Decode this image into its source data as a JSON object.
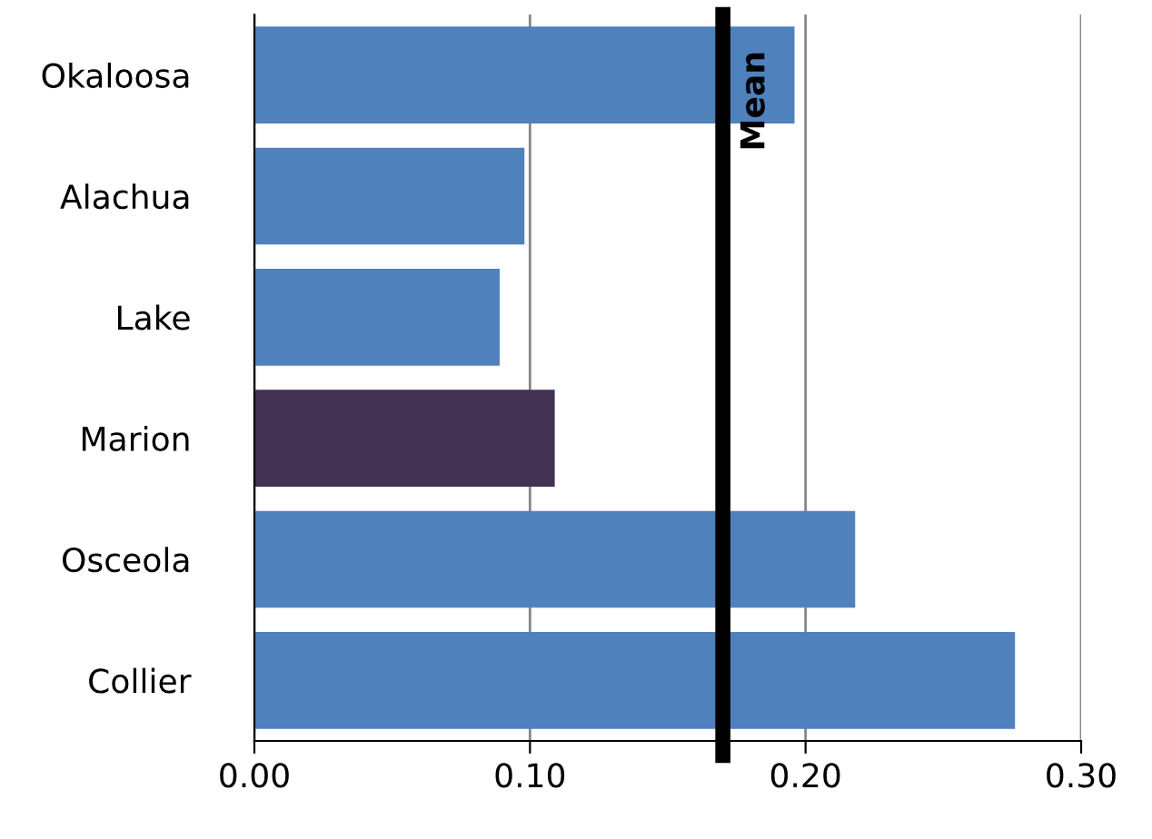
{
  "chart_data": {
    "type": "bar",
    "orientation": "horizontal",
    "categories": [
      "Okaloosa",
      "Alachua",
      "Lake",
      "Marion",
      "Osceola",
      "Collier"
    ],
    "values": [
      0.196,
      0.098,
      0.089,
      0.109,
      0.218,
      0.276
    ],
    "colors": [
      "#4f81bd",
      "#4f81bd",
      "#4f81bd",
      "#433254",
      "#4f81bd",
      "#4f81bd"
    ],
    "xlim": [
      0,
      0.3
    ],
    "xticks": [
      {
        "value": 0,
        "label": "0.00"
      },
      {
        "value": 0.1,
        "label": "0.10"
      },
      {
        "value": 0.2,
        "label": "0.20"
      },
      {
        "value": 0.3,
        "label": "0.30"
      }
    ],
    "grid": "x",
    "ref_lines": [
      {
        "axis": "x",
        "value": 0.17,
        "label": "Mean",
        "color": "#000000"
      }
    ]
  }
}
